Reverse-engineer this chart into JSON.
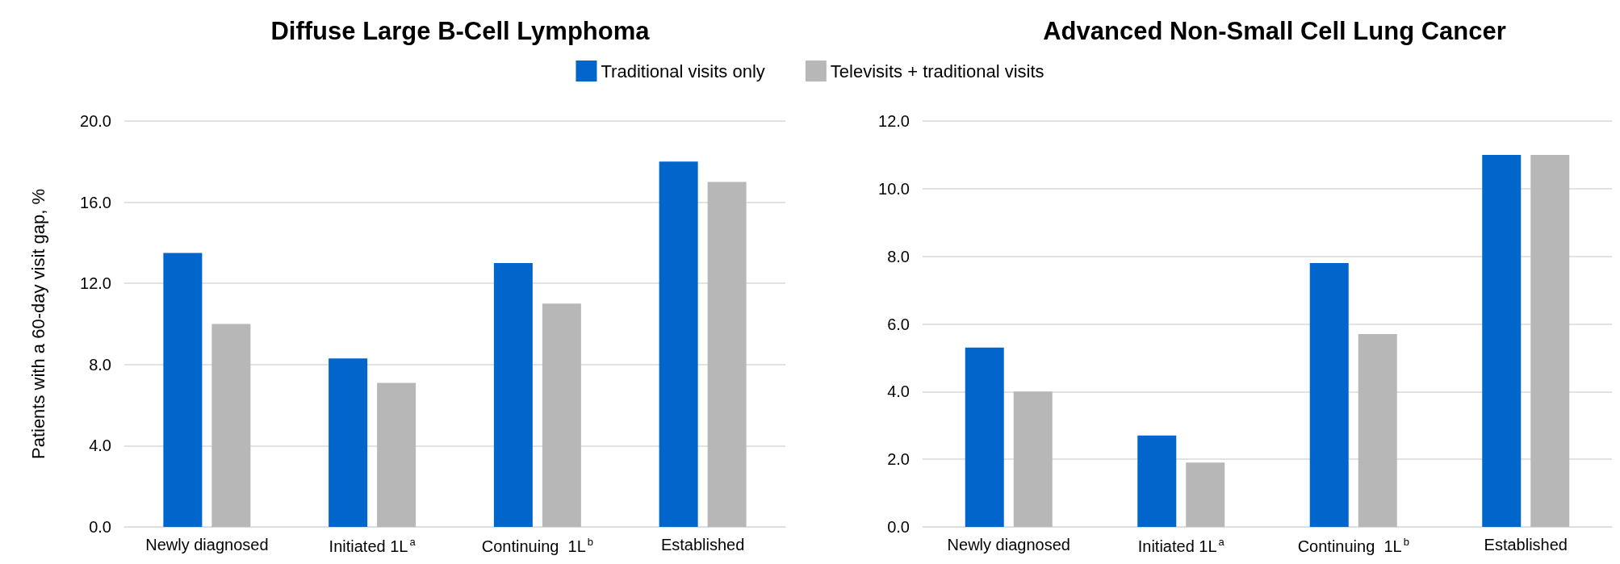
{
  "chart_data": [
    {
      "type": "bar",
      "title": "Diffuse Large B-Cell Lymphoma",
      "ylabel": "Patients with a 60-day visit gap, %",
      "categories": [
        "Newly diagnosed",
        "Initiated 1L$^{a}$",
        "Continuing  1L$^{b}$",
        "Established"
      ],
      "series": [
        {
          "name": "Traditional visits only",
          "color": "#0066cc",
          "values": [
            13.5,
            8.3,
            13.0,
            18.0
          ]
        },
        {
          "name": "Televisits + traditional visits",
          "color": "#b7b7b7",
          "values": [
            10.0,
            7.1,
            11.0,
            17.0
          ]
        }
      ],
      "ylim": [
        0,
        20
      ],
      "yticks": [
        {
          "value": 0,
          "label": "0.0"
        },
        {
          "value": 4,
          "label": "4.0"
        },
        {
          "value": 8,
          "label": "8.0"
        },
        {
          "value": 12,
          "label": "12.0"
        },
        {
          "value": 16,
          "label": "16.0"
        },
        {
          "value": 20,
          "label": "20.0"
        }
      ],
      "grid": "y",
      "legend": "top"
    },
    {
      "type": "bar",
      "title": "Advanced Non-Small Cell Lung Cancer",
      "categories": [
        "Newly diagnosed",
        "Initiated 1L$^{a}$",
        "Continuing  1L$^{b}$",
        "Established"
      ],
      "series": [
        {
          "color": "#0066cc",
          "values": [
            5.3,
            2.7,
            7.8,
            11.0
          ]
        },
        {
          "color": "#b7b7b7",
          "values": [
            4.0,
            1.9,
            5.7,
            11.0
          ]
        }
      ],
      "ylim": [
        0,
        12
      ],
      "yticks": [
        {
          "value": 0,
          "label": "0.0"
        },
        {
          "value": 2,
          "label": "2.0"
        },
        {
          "value": 4,
          "label": "4.0"
        },
        {
          "value": 6,
          "label": "6.0"
        },
        {
          "value": 8,
          "label": "8.0"
        },
        {
          "value": 10,
          "label": "10.0"
        },
        {
          "value": 12,
          "label": "12.0"
        }
      ],
      "grid": "y"
    }
  ]
}
